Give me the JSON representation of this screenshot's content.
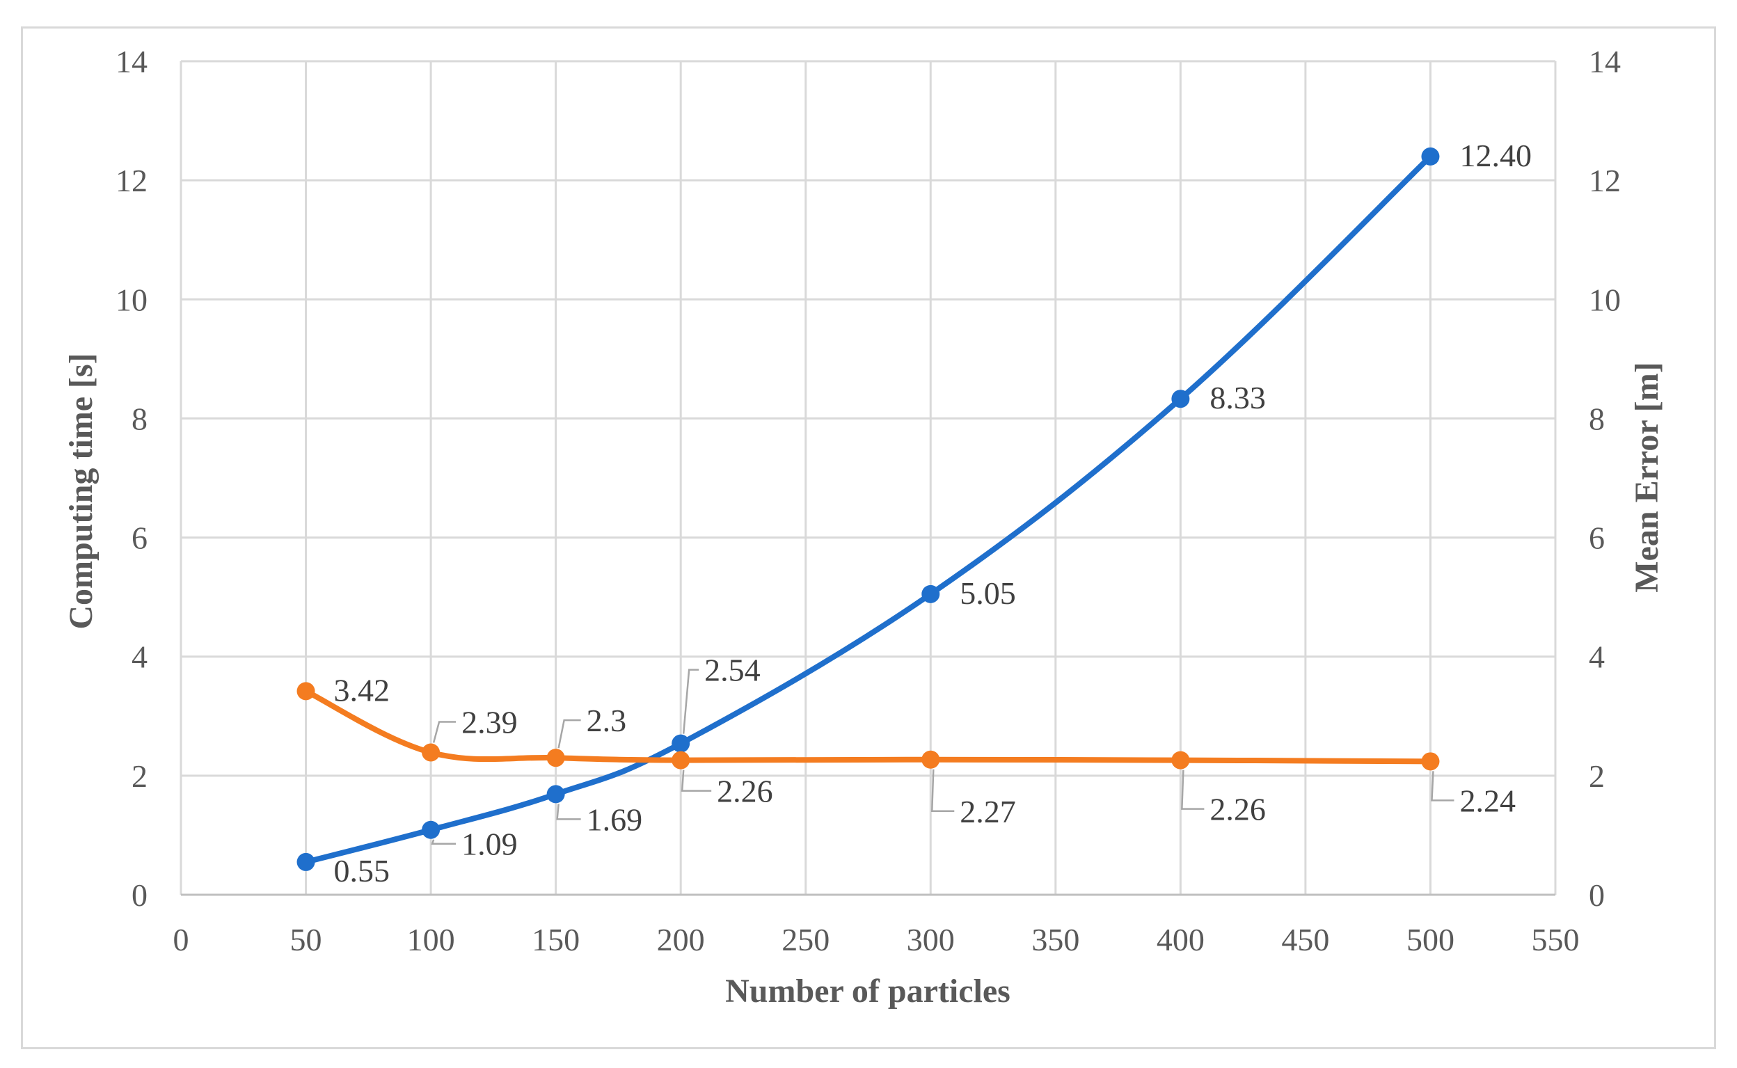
{
  "chart_data": {
    "type": "line",
    "xlabel": "Number of particles",
    "ylabel_left": "Computing time [s]",
    "ylabel_right": "Mean Error [m]",
    "xlim": [
      0,
      550
    ],
    "ylim_left": [
      0,
      14
    ],
    "ylim_right": [
      0,
      14
    ],
    "x_ticks": [
      "0",
      "50",
      "100",
      "150",
      "200",
      "250",
      "300",
      "350",
      "400",
      "450",
      "500",
      "550"
    ],
    "y_ticks_left": [
      "0",
      "2",
      "4",
      "6",
      "8",
      "10",
      "12",
      "14"
    ],
    "y_ticks_right": [
      "0",
      "2",
      "4",
      "6",
      "8",
      "10",
      "12",
      "14"
    ],
    "grid": true,
    "series": [
      {
        "name": "Computing time",
        "axis": "left",
        "color": "#1f6fcc",
        "x": [
          50,
          100,
          150,
          200,
          300,
          400,
          500
        ],
        "values": [
          0.55,
          1.09,
          1.69,
          2.54,
          5.05,
          8.33,
          12.4
        ],
        "labels": [
          "0.55",
          "1.09",
          "1.69",
          "2.54",
          "5.05",
          "8.33",
          "12.40"
        ]
      },
      {
        "name": "Mean Error",
        "axis": "right",
        "color": "#f47c20",
        "x": [
          50,
          100,
          150,
          200,
          300,
          400,
          500
        ],
        "values": [
          3.42,
          2.39,
          2.3,
          2.26,
          2.27,
          2.26,
          2.24
        ],
        "labels": [
          "3.42",
          "2.39",
          "2.3",
          "2.26",
          "2.27",
          "2.26",
          "2.24"
        ]
      }
    ]
  }
}
